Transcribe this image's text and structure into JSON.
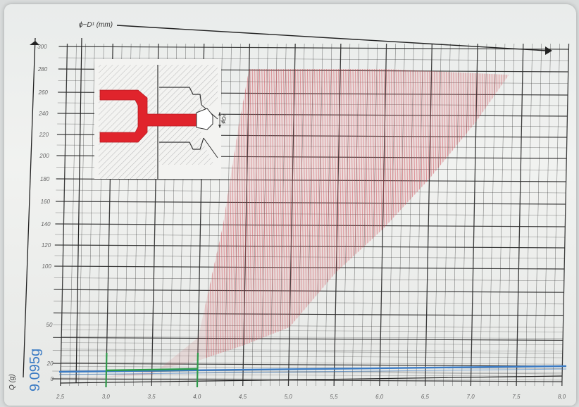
{
  "chart_data": {
    "type": "area",
    "xlabel": "ϕ−D¹ (mm)",
    "ylabel": "Q (g)",
    "x_ticks": [
      "2,5",
      "3,0",
      "3,5",
      "4,0",
      "4,5",
      "5,0",
      "5,5",
      "6,0",
      "6,5",
      "7,0",
      "7,5",
      "8,0"
    ],
    "y_ticks": [
      "0",
      "20",
      "50",
      "100",
      "120",
      "140",
      "160",
      "180",
      "200",
      "220",
      "240",
      "260",
      "280",
      "300"
    ],
    "y_tick_values": [
      0,
      20,
      50,
      100,
      120,
      140,
      160,
      180,
      200,
      220,
      240,
      260,
      280,
      300
    ],
    "xlim": [
      2.5,
      8.0
    ],
    "grid": true,
    "series": [
      {
        "color": "#d0505a",
        "upper_boundary": [
          {
            "x": 2.5,
            "y": 0
          },
          {
            "x": 3.0,
            "y": 3
          },
          {
            "x": 3.5,
            "y": 10
          },
          {
            "x": 4.0,
            "y": 22
          },
          {
            "x": 4.5,
            "y": 34
          },
          {
            "x": 5.0,
            "y": 48
          },
          {
            "x": 5.5,
            "y": 95
          },
          {
            "x": 6.0,
            "y": 135
          },
          {
            "x": 6.5,
            "y": 180
          },
          {
            "x": 7.0,
            "y": 232
          },
          {
            "x": 7.35,
            "y": 275
          }
        ],
        "lower_boundary": [
          {
            "x": 2.5,
            "y": 0
          },
          {
            "x": 3.0,
            "y": 2
          },
          {
            "x": 3.5,
            "y": 5
          },
          {
            "x": 4.0,
            "y": 40
          },
          {
            "x": 4.25,
            "y": 140
          },
          {
            "x": 4.4,
            "y": 230
          },
          {
            "x": 4.5,
            "y": 280
          },
          {
            "x": 5.0,
            "y": 280
          },
          {
            "x": 6.0,
            "y": 280
          },
          {
            "x": 7.35,
            "y": 275
          }
        ]
      }
    ],
    "annotations": [
      {
        "type": "hline",
        "y": 9.095,
        "color": "#3b7bc4",
        "label": "9.095g"
      },
      {
        "type": "vline",
        "x": 3.0,
        "color": "#2e9a4a"
      },
      {
        "type": "vline",
        "x": 4.0,
        "color": "#2e9a4a"
      },
      {
        "type": "segment",
        "x1": 3.0,
        "y1": 9.095,
        "x2": 4.0,
        "y2": 11,
        "color": "#2e9a4a"
      }
    ]
  },
  "colors": {
    "grid": "#2b2b2b",
    "region": "#d0505a",
    "highlight_blue": "#3b7bc4",
    "highlight_green": "#2e9a4a",
    "nozzle_fill": "#e0242c"
  },
  "inset": {
    "label": "ϕD¹"
  }
}
